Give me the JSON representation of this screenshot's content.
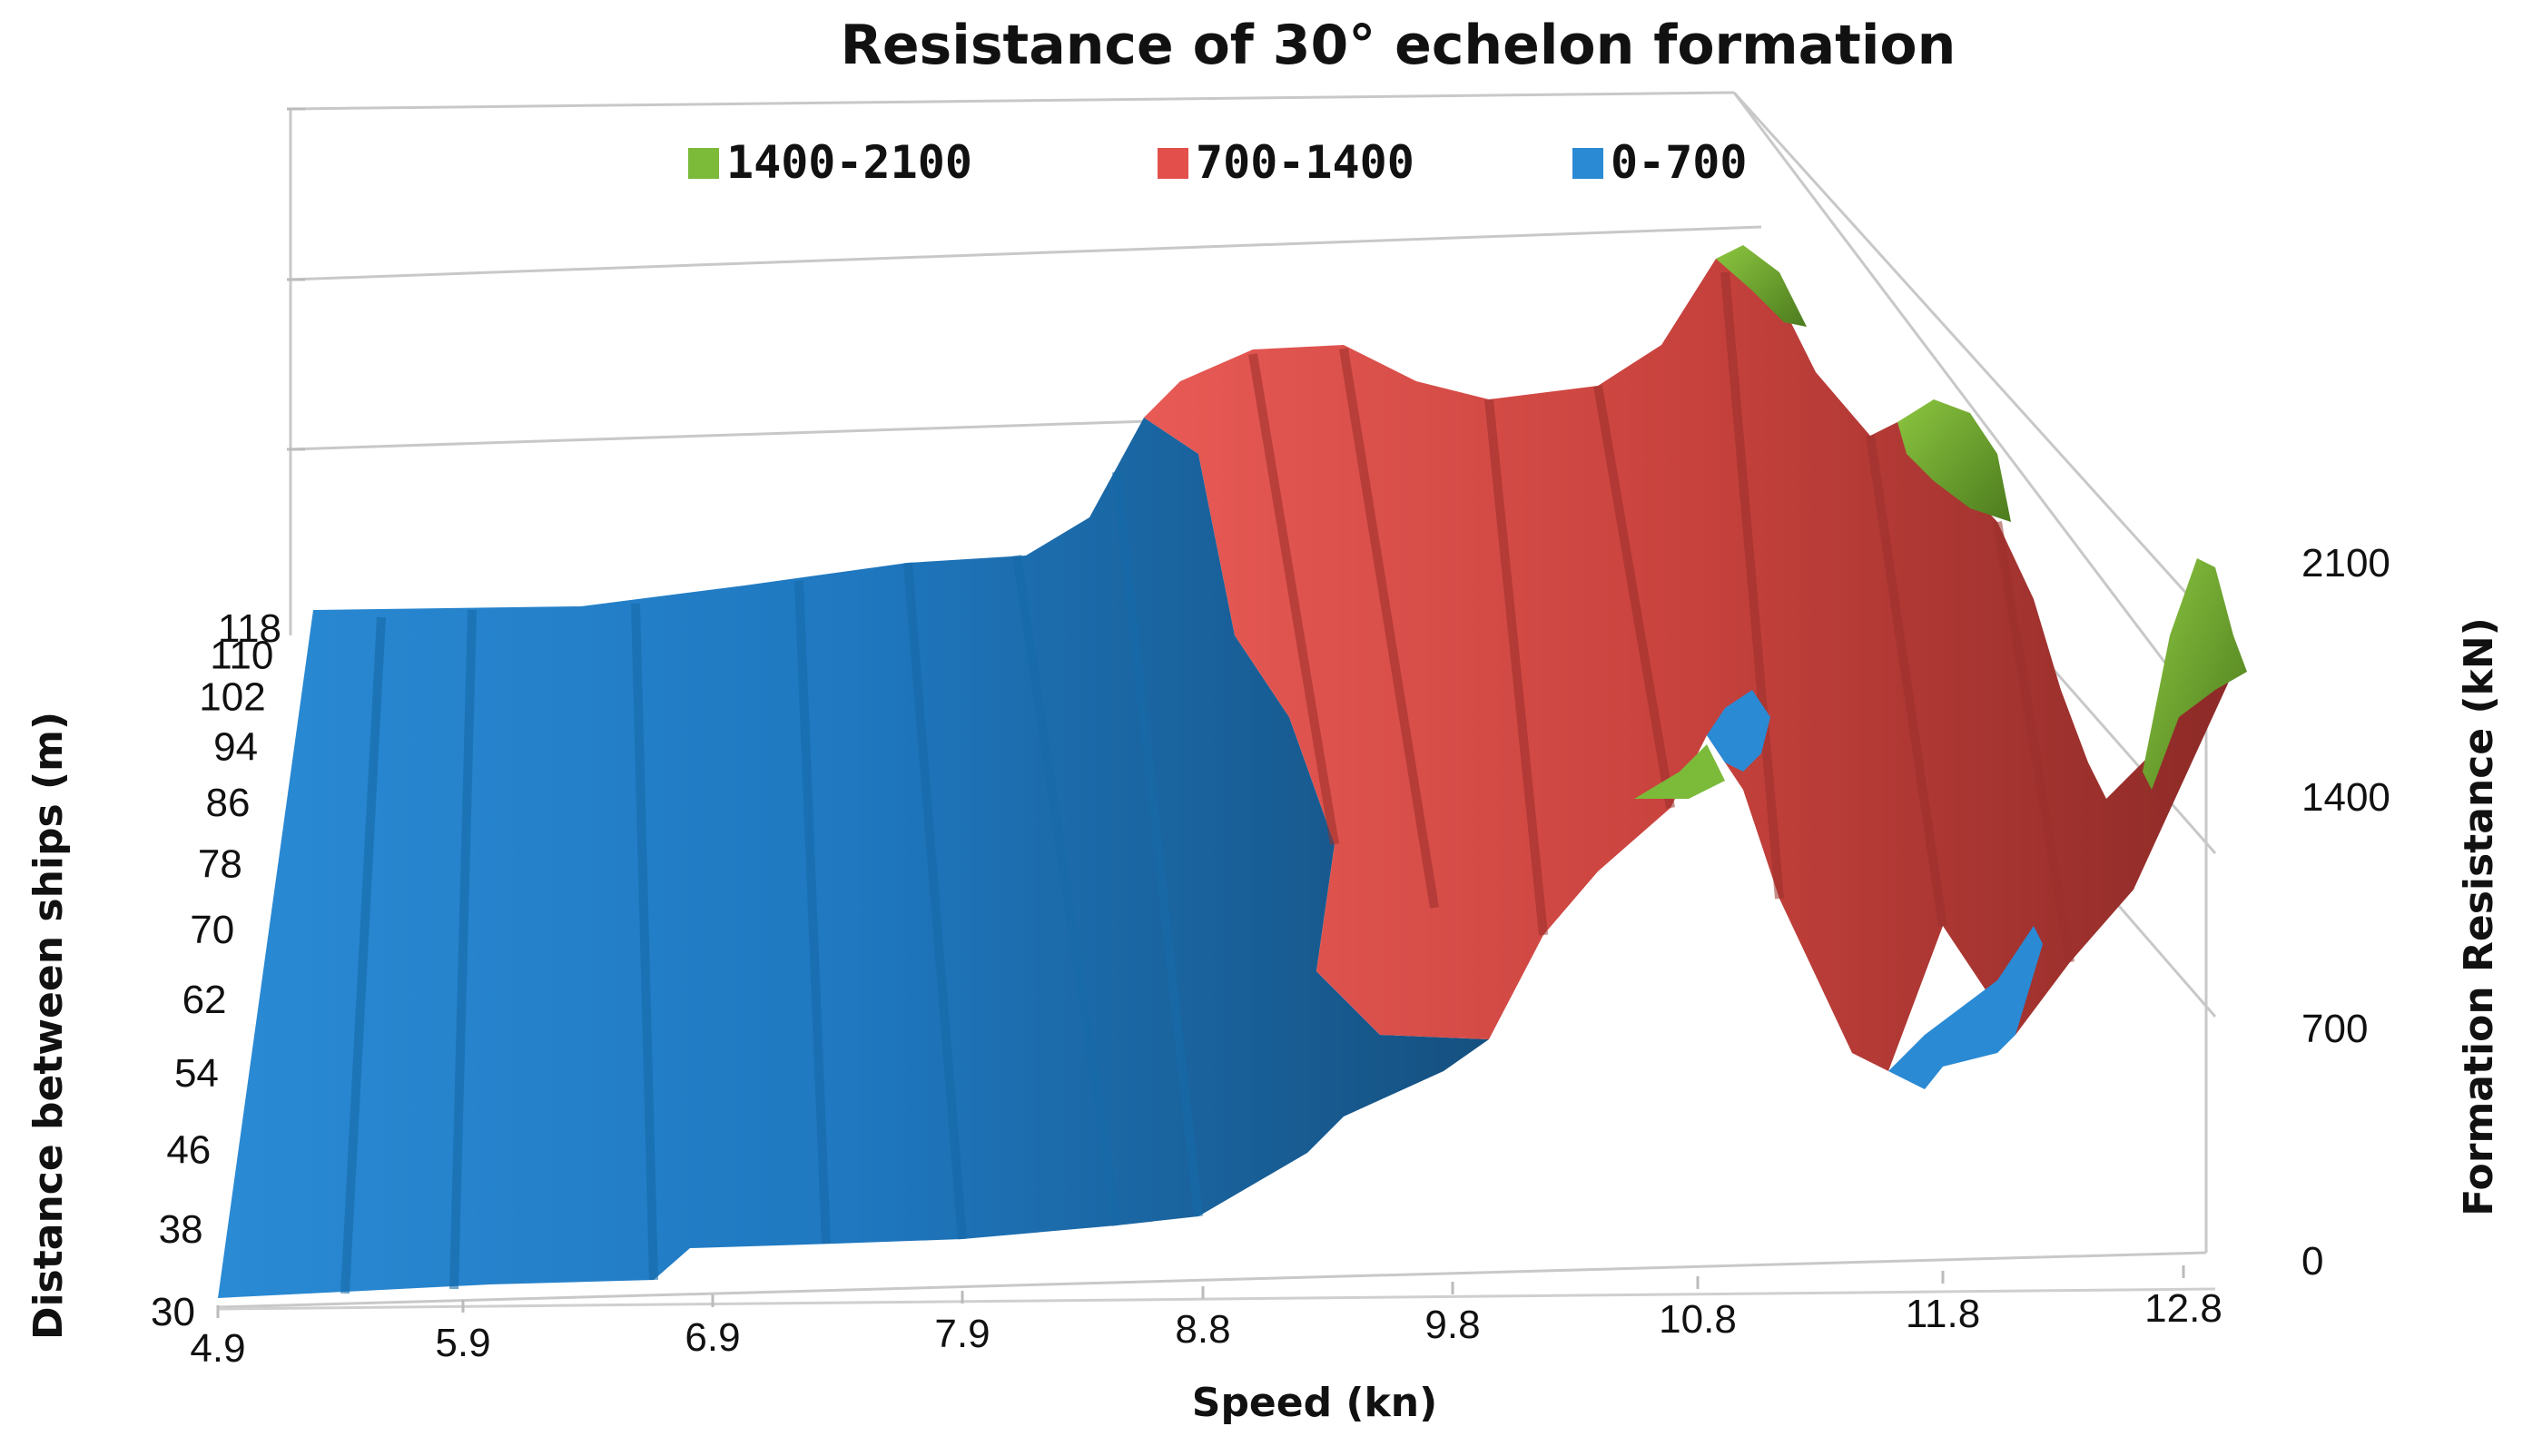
{
  "chart_data": {
    "type": "surface-3d",
    "title": "Resistance of 30° echelon formation",
    "xlabel": "Speed (kn)",
    "ylabel": "Distance between ships (m)",
    "zlabel": "Formation Resistance (kN)",
    "x_ticks": [
      "4.9",
      "5.9",
      "6.9",
      "7.9",
      "8.8",
      "9.8",
      "10.8",
      "11.8",
      "12.8"
    ],
    "y_ticks": [
      "30",
      "38",
      "46",
      "54",
      "62",
      "70",
      "78",
      "86",
      "94",
      "102",
      "110",
      "118"
    ],
    "z_ticks": [
      "0",
      "700",
      "1400",
      "2100"
    ],
    "zlim": [
      0,
      2100
    ],
    "legend_position": "top",
    "legend": [
      {
        "name": "1400-2100",
        "color": "#7cba3a"
      },
      {
        "name": "700-1400",
        "color": "#e3504b"
      },
      {
        "name": "0-700",
        "color": "#2a8ad4"
      }
    ],
    "series_note_values": {
      "speeds": [
        4.9,
        5.9,
        6.9,
        7.9,
        8.8,
        9.8,
        10.8,
        11.8,
        12.8
      ],
      "distances": [
        30,
        38,
        46,
        54,
        62,
        70,
        78,
        86,
        94,
        102,
        110,
        118
      ],
      "resistance_at_distance_30": [
        120,
        150,
        200,
        270,
        380,
        560,
        900,
        1150,
        1700
      ],
      "resistance_at_distance_118": [
        140,
        190,
        260,
        380,
        900,
        1150,
        1900,
        1700,
        1800
      ]
    }
  }
}
